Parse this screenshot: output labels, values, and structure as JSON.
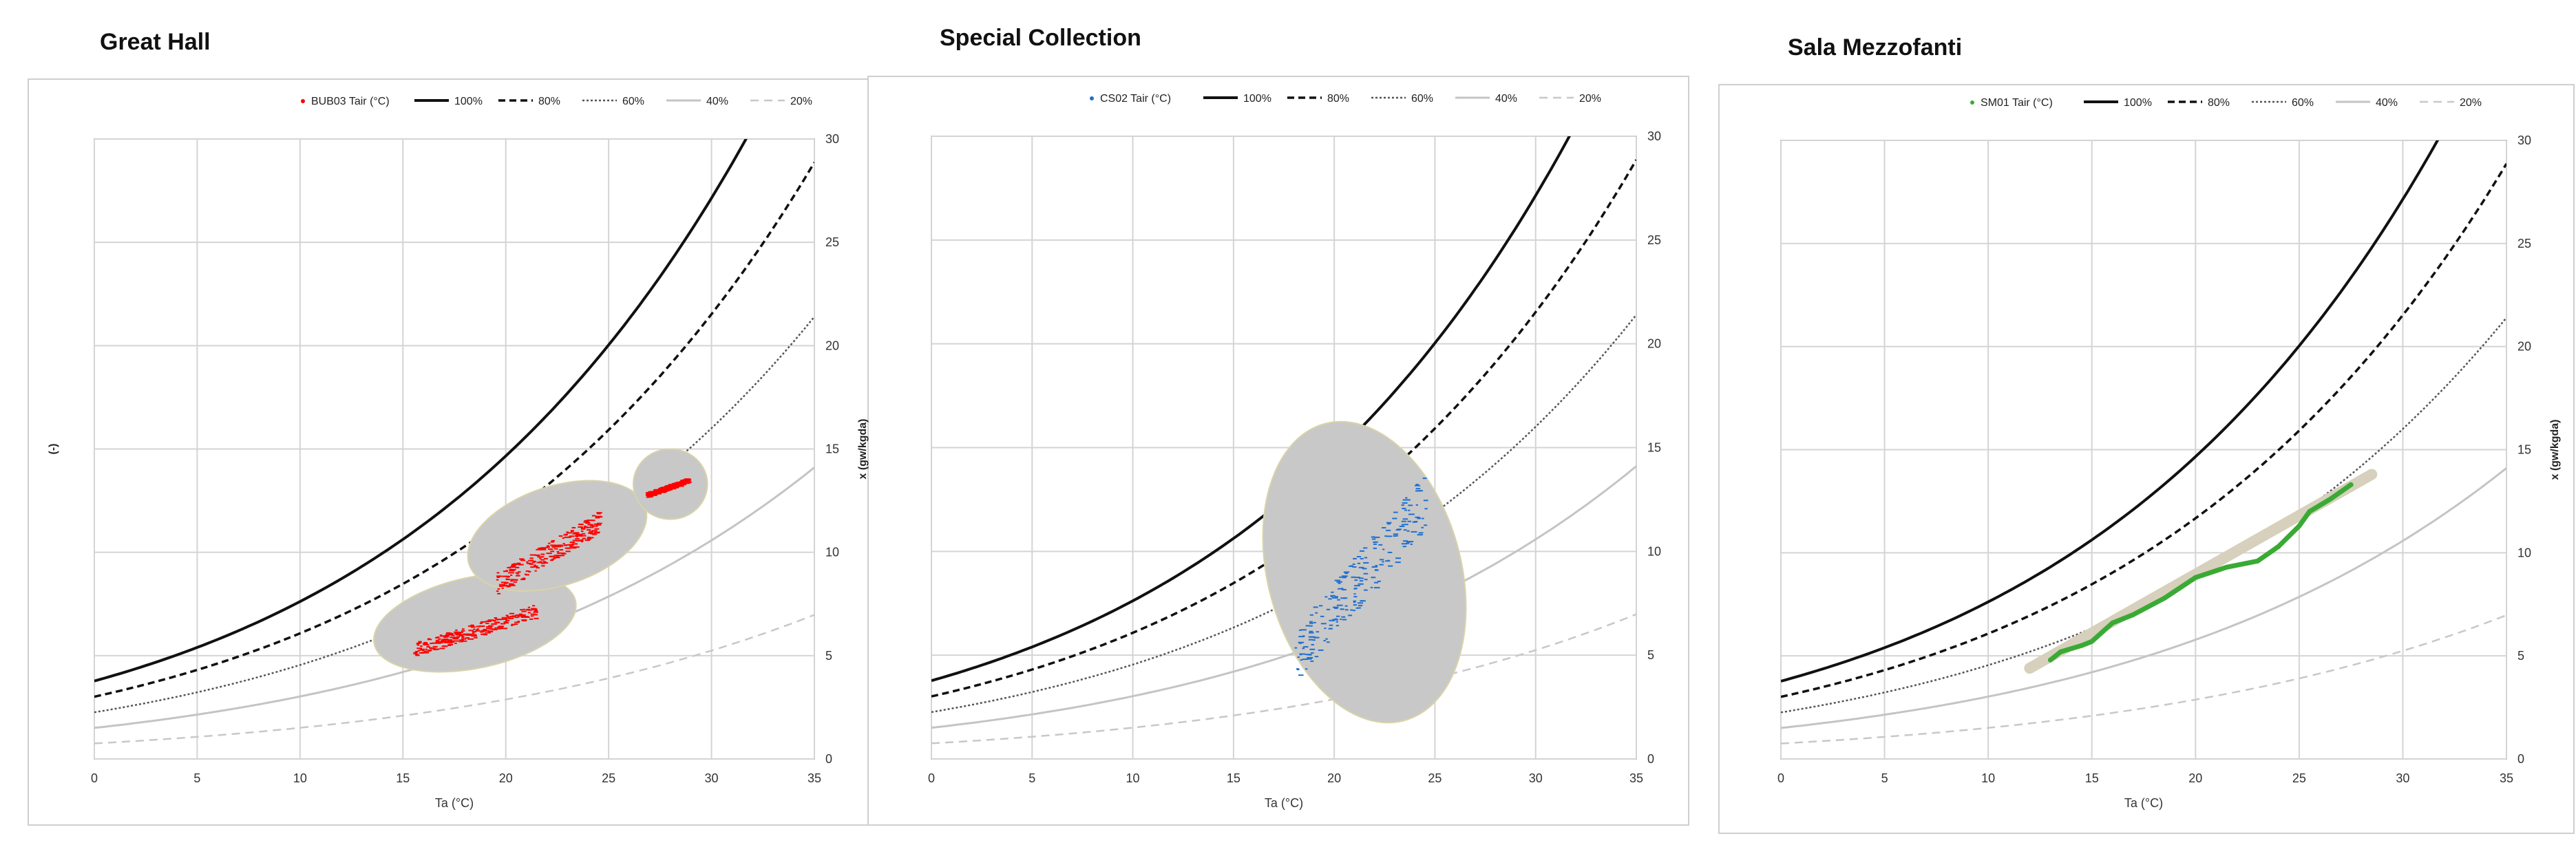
{
  "panels": [
    {
      "title": "Great Hall",
      "legend": {
        "sensor": "BUB03 Tair (°C)",
        "rh": [
          "100%",
          "80%",
          "60%",
          "40%",
          "20%"
        ]
      },
      "xlabel": "Ta (°C)",
      "ylabel_left": "(-)",
      "ylabel_right": "x (gw/kgda)",
      "data_color": "#ff0000",
      "area_color": "#c8c8c8"
    },
    {
      "title": "Special Collection",
      "legend": {
        "sensor": "CS02 Tair (°C)",
        "rh": [
          "100%",
          "80%",
          "60%",
          "40%",
          "20%"
        ]
      },
      "xlabel": "Ta (°C)",
      "ylabel_left": "",
      "ylabel_right": "",
      "data_color": "#1f6fd0",
      "area_color": "#c8c8c8"
    },
    {
      "title": "Sala Mezzofanti",
      "legend": {
        "sensor": "SM01 Tair (°C)",
        "rh": [
          "100%",
          "80%",
          "60%",
          "40%",
          "20%"
        ]
      },
      "xlabel": "Ta (°C)",
      "ylabel_left": "",
      "ylabel_right": "x (gw/kgda)",
      "data_color": "#3aaa35",
      "area_color": "#d6d0bc"
    }
  ],
  "chart_data": [
    {
      "type": "scatter",
      "title": "Great Hall",
      "xlabel": "Ta (°C)",
      "ylabel": "x (gw/kgda)",
      "xlim": [
        0,
        35
      ],
      "ylim": [
        0,
        30
      ],
      "x_ticks": [
        0,
        5,
        10,
        15,
        20,
        25,
        30,
        35
      ],
      "y_ticks": [
        0,
        5,
        10,
        15,
        20,
        25,
        30
      ],
      "grid": true,
      "legend_position": "top",
      "rh_curves": [
        100,
        80,
        60,
        40,
        20
      ],
      "series": [
        {
          "name": "BUB03 Tair (°C)",
          "clusters": [
            {
              "x": [
                15.5,
                21.5
              ],
              "y": [
                5.3,
                7.2
              ]
            },
            {
              "x": [
                19.5,
                24.5
              ],
              "y": [
                8.5,
                11.5
              ]
            },
            {
              "x": [
                26.8,
                28.8
              ],
              "y": [
                12.8,
                13.5
              ]
            }
          ],
          "ellipses": [
            {
              "cx": 18.5,
              "cy": 6.6,
              "rx": 5.0,
              "ry": 2.2,
              "angle": 12
            },
            {
              "cx": 22.5,
              "cy": 10.8,
              "rx": 4.5,
              "ry": 2.4,
              "angle": 18
            },
            {
              "cx": 28.0,
              "cy": 13.3,
              "rx": 1.8,
              "ry": 1.7,
              "angle": 0
            }
          ]
        }
      ]
    },
    {
      "type": "scatter",
      "title": "Special Collection",
      "xlabel": "Ta (°C)",
      "ylabel": "",
      "xlim": [
        0,
        35
      ],
      "ylim": [
        0,
        30
      ],
      "x_ticks": [
        0,
        5,
        10,
        15,
        20,
        25,
        30,
        35
      ],
      "y_ticks": [
        0,
        5,
        10,
        15,
        20,
        25,
        30
      ],
      "grid": true,
      "legend_position": "top",
      "rh_curves": [
        100,
        80,
        60,
        40,
        20
      ],
      "series": [
        {
          "name": "CS02 Tair (°C)",
          "clusters": [
            {
              "x": [
                18.0,
                24.5
              ],
              "y": [
                5.0,
                12.5
              ]
            }
          ],
          "ellipses": [
            {
              "cx": 21.5,
              "cy": 9.0,
              "rx": 4.8,
              "ry": 7.4,
              "angle": 15
            }
          ]
        }
      ]
    },
    {
      "type": "line",
      "title": "Sala Mezzofanti",
      "xlabel": "Ta (°C)",
      "ylabel": "x (gw/kgda)",
      "xlim": [
        0,
        35
      ],
      "ylim": [
        0,
        30
      ],
      "x_ticks": [
        0,
        5,
        10,
        15,
        20,
        25,
        30,
        35
      ],
      "y_ticks": [
        0,
        5,
        10,
        15,
        20,
        25,
        30
      ],
      "grid": true,
      "legend_position": "top",
      "rh_curves": [
        100,
        80,
        60,
        40,
        20
      ],
      "series": [
        {
          "name": "SM01 Tair (°C)",
          "x": [
            13.0,
            13.5,
            14.5,
            15.0,
            16.0,
            17.0,
            18.5,
            20.0,
            21.5,
            22.5,
            23.0,
            24.0,
            25.0,
            25.5,
            26.5,
            27.5
          ],
          "y": [
            4.8,
            5.2,
            5.5,
            5.7,
            6.6,
            7.0,
            7.8,
            8.8,
            9.3,
            9.5,
            9.6,
            10.3,
            11.3,
            12.0,
            12.6,
            13.3
          ]
        },
        {
          "name": "",
          "band_x": [
            12.0,
            28.5
          ],
          "band_y": [
            4.4,
            13.8
          ]
        }
      ]
    }
  ]
}
